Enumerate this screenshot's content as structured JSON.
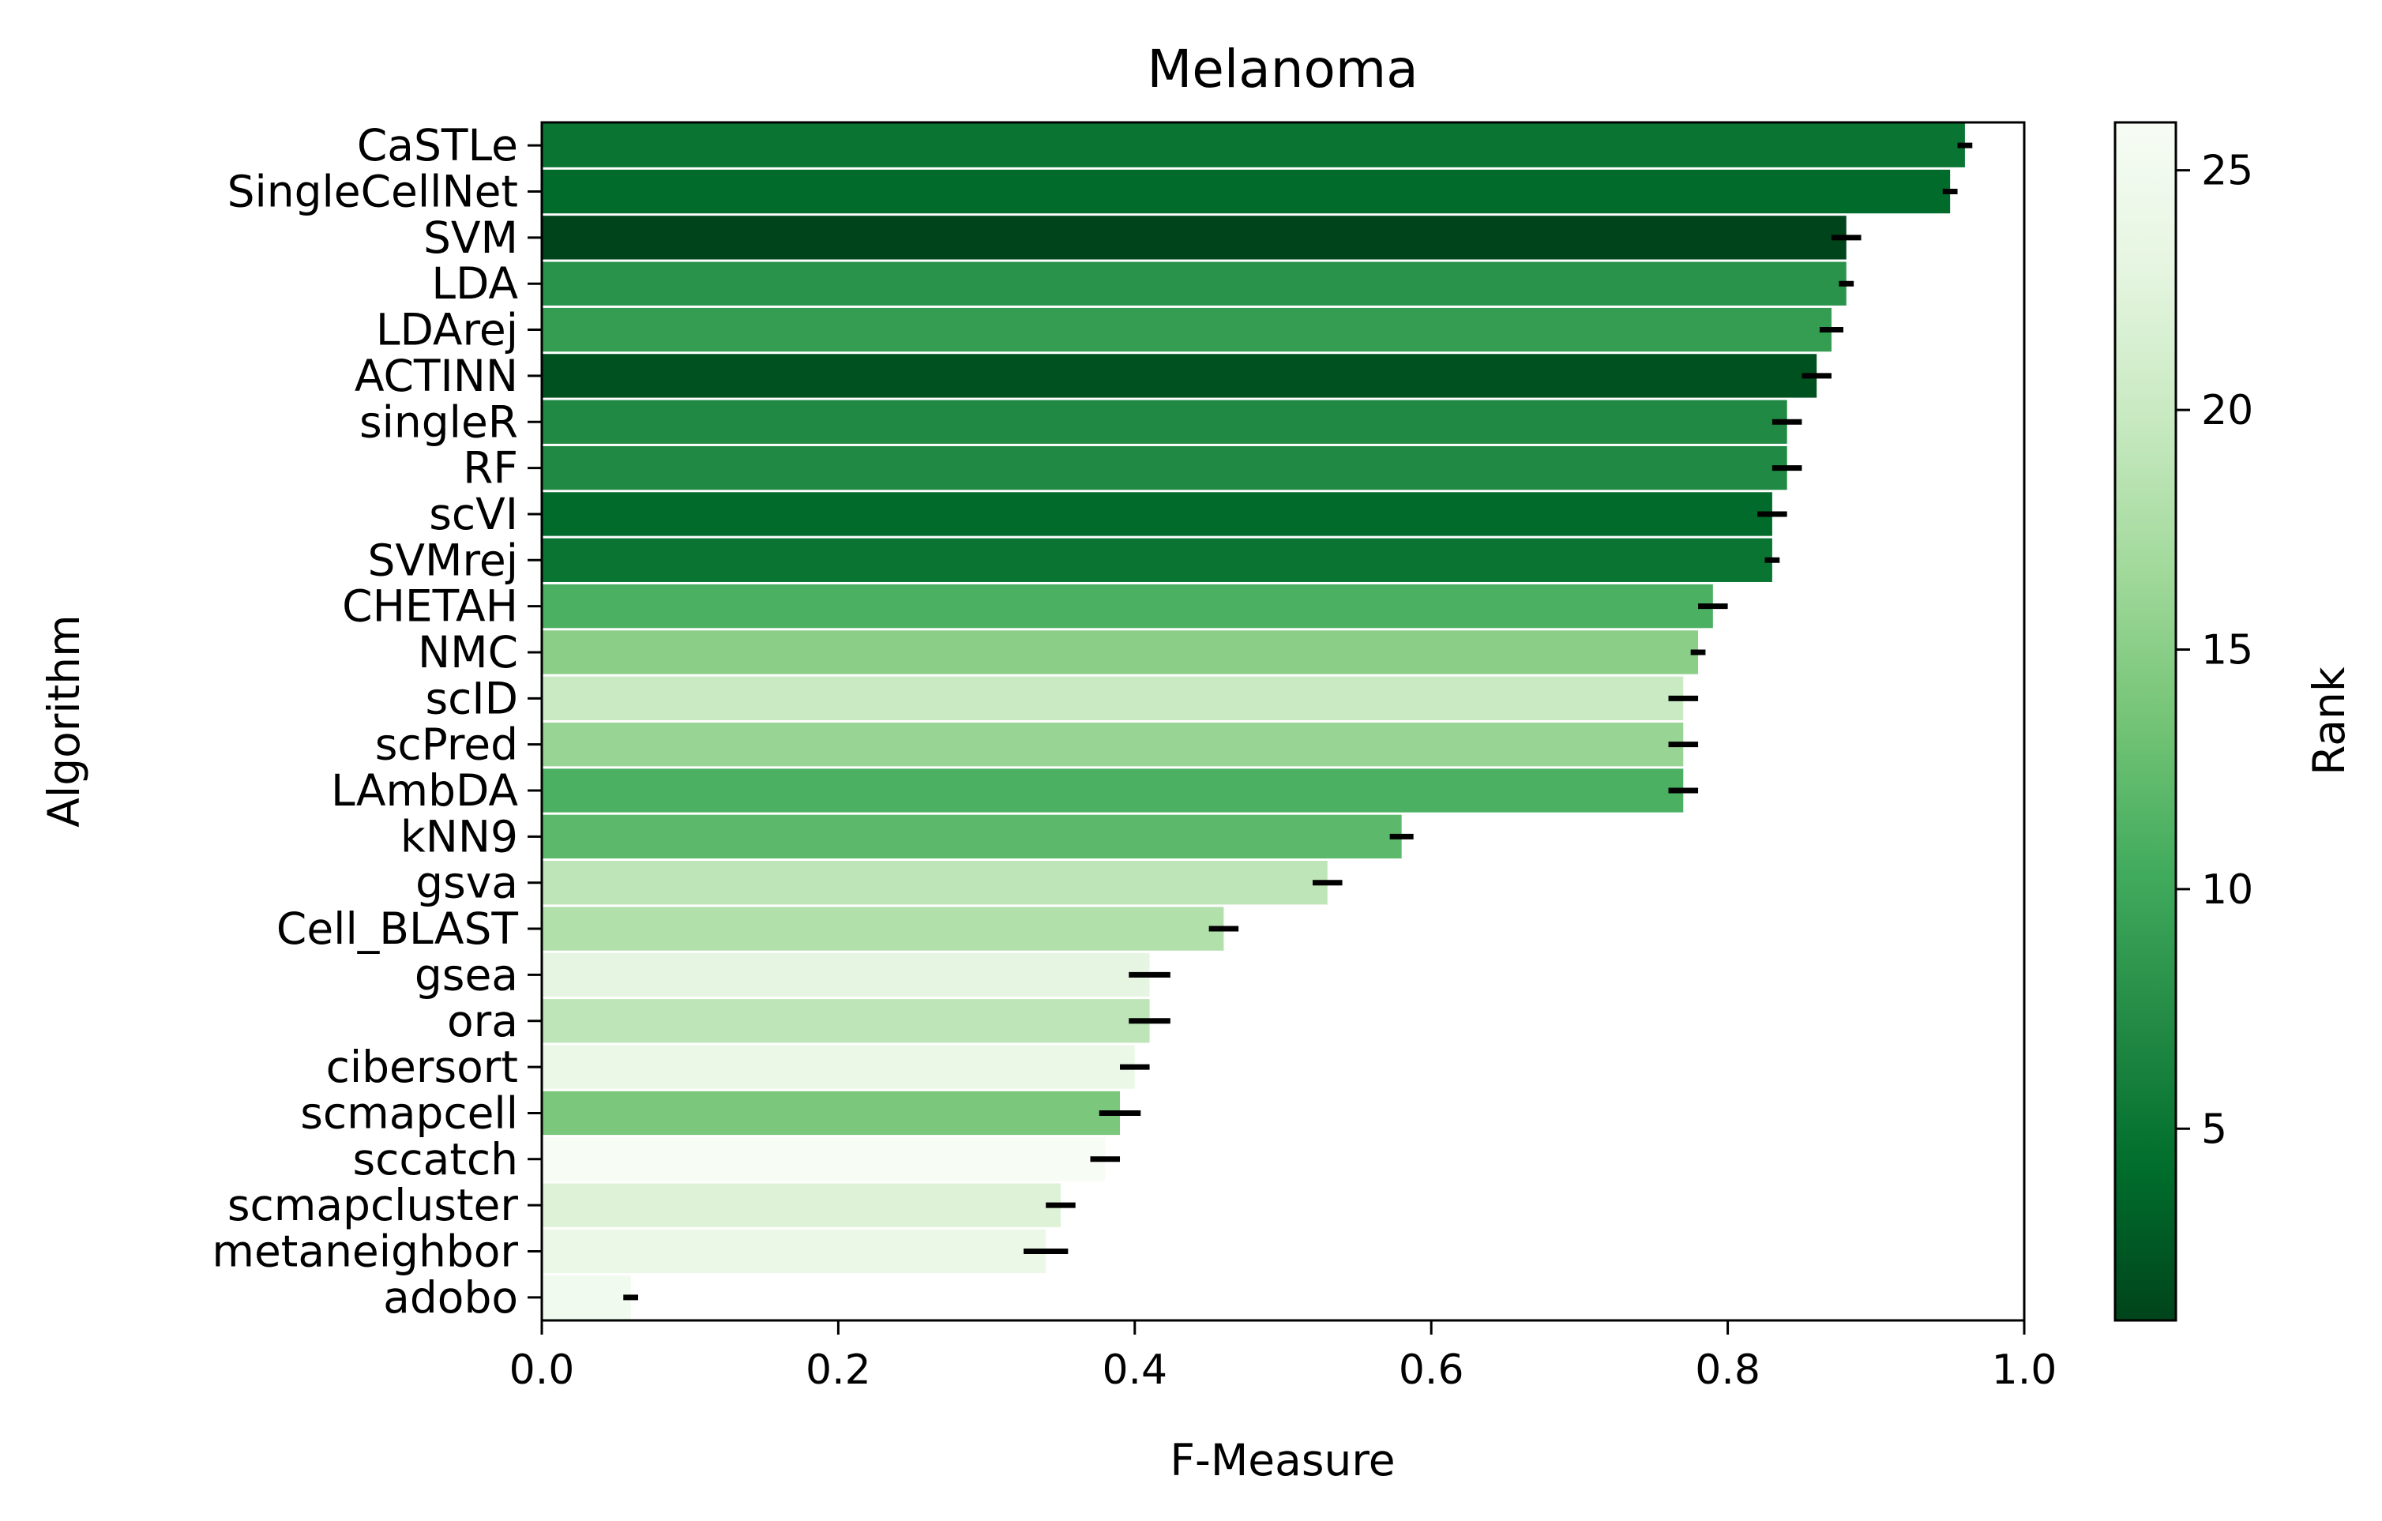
{
  "chart_data": {
    "type": "bar",
    "orientation": "horizontal",
    "title": "Melanoma",
    "xlabel": "F-Measure",
    "ylabel": "Algorithm",
    "xlim": [
      0.0,
      1.0
    ],
    "xticks": [
      "0.0",
      "0.2",
      "0.4",
      "0.6",
      "0.8",
      "1.0"
    ],
    "grid": false,
    "categories": [
      "CaSTLe",
      "SingleCellNet",
      "SVM",
      "LDA",
      "LDArej",
      "ACTINN",
      "singleR",
      "RF",
      "scVI",
      "SVMrej",
      "CHETAH",
      "NMC",
      "scID",
      "scPred",
      "LAmbDA",
      "kNN9",
      "gsva",
      "Cell_BLAST",
      "gsea",
      "ora",
      "cibersort",
      "scmapcell",
      "sccatch",
      "scmapcluster",
      "metaneighbor",
      "adobo"
    ],
    "values": [
      0.96,
      0.95,
      0.88,
      0.88,
      0.87,
      0.86,
      0.84,
      0.84,
      0.83,
      0.83,
      0.79,
      0.78,
      0.77,
      0.77,
      0.77,
      0.58,
      0.53,
      0.46,
      0.41,
      0.41,
      0.4,
      0.39,
      0.38,
      0.35,
      0.34,
      0.06
    ],
    "errors": [
      0.005,
      0.005,
      0.01,
      0.005,
      0.008,
      0.01,
      0.01,
      0.01,
      0.01,
      0.005,
      0.01,
      0.005,
      0.01,
      0.01,
      0.01,
      0.008,
      0.01,
      0.01,
      0.014,
      0.014,
      0.01,
      0.014,
      0.01,
      0.01,
      0.015,
      0.005
    ],
    "ranks": [
      5,
      4,
      1,
      8,
      9,
      2,
      7,
      7,
      4,
      5,
      11,
      15,
      20,
      16,
      11,
      12,
      19,
      18,
      23,
      19,
      24,
      14,
      26,
      22,
      24,
      25
    ],
    "colorbar": {
      "label": "Rank",
      "ticks": [
        "5",
        "10",
        "15",
        "20",
        "25"
      ],
      "range": [
        1,
        26
      ],
      "colormap": "Greens_r",
      "color_low_rank": "#00441b",
      "color_high_rank": "#f7fcf5"
    }
  }
}
